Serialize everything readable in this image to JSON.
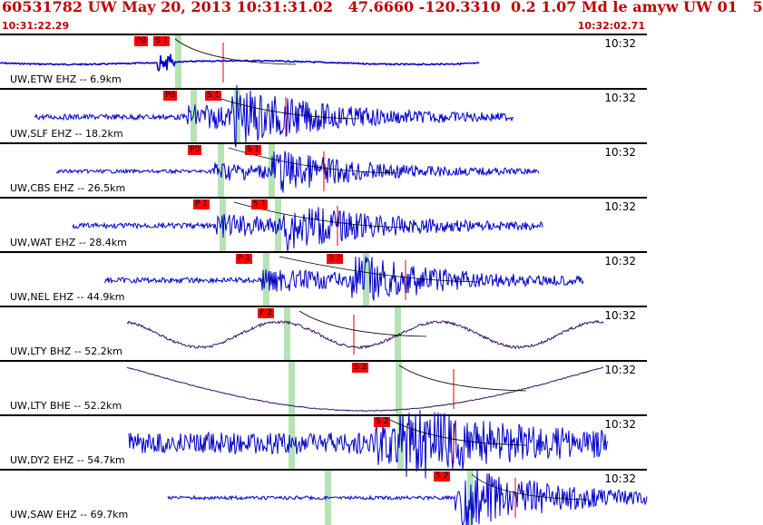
{
  "header": {
    "title": "60531782 UW May 20, 2013 10:31:31.02   47.6660 -120.3310  0.2 1.07 Md le amyw UW 01   5",
    "start_time": "10:31:22.29",
    "end_time": "10:32:02.71"
  },
  "colors": {
    "header_text": "#c00000",
    "waveform": "#0000cc",
    "pick_box": "#ff0000",
    "phase_band": "#b5e3b5",
    "residual_line": "#000000"
  },
  "traces": [
    {
      "label": "UW,ETW EHZ -- 6.9km",
      "time": "10:32",
      "picks": [
        "P0",
        "S 1"
      ]
    },
    {
      "label": "UW,SLF EHZ -- 18.2km",
      "time": "10:32",
      "picks": [
        "P0",
        "S 1"
      ]
    },
    {
      "label": "UW,CBS EHZ -- 26.5km",
      "time": "10:32",
      "picks": [
        "P0",
        "S 1"
      ]
    },
    {
      "label": "UW,WAT EHZ -- 28.4km",
      "time": "10:32",
      "picks": [
        "P 1",
        "S 1"
      ]
    },
    {
      "label": "UW,NEL EHZ -- 44.9km",
      "time": "10:32",
      "picks": [
        "P 1",
        "S 2"
      ]
    },
    {
      "label": "UW,LTY BHZ -- 52.2km",
      "time": "10:32",
      "picks": [
        "P 2"
      ]
    },
    {
      "label": "UW,LTY BHE -- 52.2km",
      "time": "10:32",
      "picks": [
        "S 2"
      ]
    },
    {
      "label": "UW,DY2 EHZ -- 54.7km",
      "time": "10:32",
      "picks": [
        "S 2"
      ]
    },
    {
      "label": "UW,SAW EHZ -- 69.7km",
      "time": "10:32",
      "picks": [
        "S 2"
      ]
    }
  ]
}
